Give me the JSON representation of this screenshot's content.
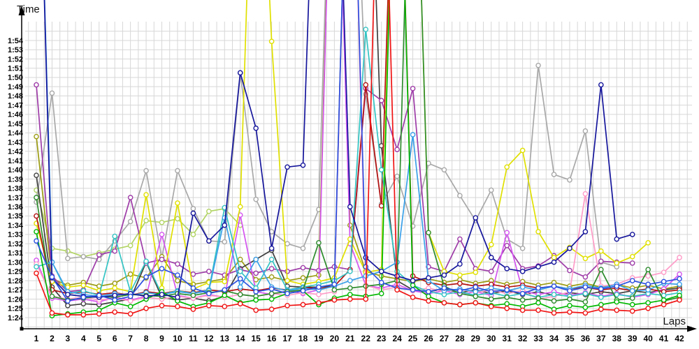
{
  "chart_data": {
    "type": "line",
    "title": "",
    "xlabel": "Laps",
    "ylabel": "Time",
    "x_min_lap": 1,
    "x_max_lap": 42,
    "x_tick_step": 1,
    "y_min_seconds": 84,
    "y_max_seconds": 114,
    "y_tick_step_seconds": 1,
    "y_tick_format": "m:ss",
    "grid": true,
    "legend_position": "none",
    "marker": "open-circle",
    "off_scale_value_seconds": 150,
    "note": "values are lap times in seconds; 84 = 1:24, 114 = 1:54; 150 = pit/out-lap spike off top of chart; null = lap not run",
    "series": [
      {
        "name": "light-green",
        "color": "#b2d465",
        "values": [
          97.8,
          91.5,
          91.2,
          90.6,
          91.0,
          91.4,
          91.8,
          94.5,
          94.3,
          94.7,
          93.0,
          95.5,
          95.8,
          94.0,
          null,
          null,
          null,
          null,
          null,
          null,
          null,
          null,
          null,
          null,
          null,
          null,
          null,
          null,
          null,
          null,
          null,
          null,
          null,
          null,
          null,
          null,
          null,
          null,
          null,
          null,
          null,
          null
        ]
      },
      {
        "name": "gray",
        "color": "#a8a8a8",
        "values": [
          96.5,
          108.3,
          90.4,
          90.6,
          90.3,
          92.3,
          94.4,
          99.9,
          90.4,
          99.9,
          95.8,
          92.3,
          92.2,
          110.5,
          96.8,
          93.3,
          92.0,
          91.5,
          95.7,
          150,
          150,
          108.2,
          96.3,
          99.3,
          93.9,
          100.7,
          100.0,
          97.2,
          94.5,
          97.8,
          92.5,
          91.5,
          111.3,
          99.5,
          98.9,
          104.2,
          90.0,
          89.5,
          null,
          null,
          null,
          null
        ]
      },
      {
        "name": "olive",
        "color": "#9c9c14",
        "values": [
          103.6,
          88.2,
          87.5,
          87.8,
          87.4,
          87.7,
          88.7,
          88.3,
          90.6,
          88.0,
          87.6,
          87.9,
          88.2,
          90.3,
          88.1,
          88.4,
          88.0,
          88.3,
          88.6,
          150,
          94.0,
          89.0,
          88.5,
          88.2,
          87.9,
          88.2,
          87.8,
          88.1,
          87.7,
          88.0,
          87.6,
          87.9,
          87.5,
          87.8,
          87.4,
          87.7,
          87.3,
          87.6,
          87.2,
          87.5,
          87.1,
          87.4
        ]
      },
      {
        "name": "dark-gray",
        "color": "#404040",
        "values": [
          99.4,
          87.3,
          85.3,
          85.5,
          85.4,
          85.7,
          86.0,
          90.0,
          86.2,
          85.9,
          86.1,
          85.8,
          86.3,
          89.3,
          90.3,
          91.3,
          87.4,
          87.3,
          87.3,
          87.4,
          150,
          150,
          102.6,
          88.0,
          87.0,
          86.8,
          87.1,
          86.7,
          87.0,
          86.6,
          86.9,
          86.5,
          86.8,
          86.4,
          86.7,
          86.5,
          86.8,
          86.6,
          86.9,
          86.7,
          87.0,
          87.2
        ]
      },
      {
        "name": "purple",
        "color": "#9e3ca8",
        "values": [
          109.2,
          88.5,
          86.8,
          87.0,
          90.8,
          91.2,
          97.0,
          89.9,
          90.3,
          89.8,
          88.7,
          89.0,
          88.6,
          89.2,
          88.8,
          89.3,
          89.0,
          89.4,
          89.1,
          89.5,
          89.2,
          108.8,
          107.5,
          102.2,
          108.8,
          89.5,
          89.0,
          92.5,
          89.3,
          89.0,
          91.8,
          89.3,
          89.6,
          90.7,
          89.1,
          88.4,
          90.1,
          90.0,
          89.9,
          null,
          null,
          null
        ]
      },
      {
        "name": "magenta",
        "color": "#d455f0",
        "values": [
          90.2,
          86.1,
          85.8,
          86.0,
          85.7,
          86.2,
          85.9,
          86.3,
          93.0,
          86.4,
          86.1,
          86.5,
          86.2,
          95.1,
          86.8,
          86.5,
          86.9,
          86.6,
          87.0,
          150,
          92.0,
          87.5,
          87.2,
          87.6,
          86.9,
          86.6,
          86.9,
          86.5,
          86.8,
          86.4,
          93.2,
          86.9,
          86.5,
          86.8,
          86.4,
          86.7,
          86.3,
          86.6,
          86.2,
          86.5,
          87.1,
          88.7
        ]
      },
      {
        "name": "yellow",
        "color": "#e0e000",
        "values": [
          94.2,
          87.9,
          87.3,
          87.5,
          86.9,
          87.2,
          86.8,
          97.3,
          87.2,
          96.4,
          87.1,
          87.8,
          87.9,
          96.0,
          150,
          113.9,
          88.0,
          87.6,
          87.9,
          88.3,
          92.5,
          88.9,
          89.2,
          150,
          150,
          93.2,
          89.0,
          88.6,
          88.9,
          91.9,
          100.3,
          102.1,
          93.3,
          90.5,
          91.6,
          90.4,
          91.2,
          89.9,
          90.6,
          92.1,
          null,
          null
        ]
      },
      {
        "name": "dark-red",
        "color": "#b41212",
        "values": [
          95.0,
          87.0,
          86.6,
          86.8,
          86.5,
          86.7,
          86.4,
          86.8,
          86.6,
          86.9,
          86.7,
          87.0,
          86.8,
          87.1,
          86.9,
          87.2,
          87.0,
          87.3,
          87.1,
          87.4,
          89.2,
          109.2,
          96.1,
          150,
          88.5,
          87.8,
          87.5,
          87.7,
          87.4,
          87.6,
          87.3,
          87.5,
          87.2,
          87.4,
          87.1,
          87.3,
          87.0,
          87.2,
          86.9,
          87.1,
          86.8,
          87.0
        ]
      },
      {
        "name": "pink",
        "color": "#ff9cc8",
        "values": [
          89.8,
          86.3,
          86.0,
          86.2,
          85.9,
          86.1,
          85.8,
          86.2,
          86.0,
          86.3,
          86.1,
          86.4,
          86.2,
          86.5,
          86.3,
          86.6,
          86.4,
          86.7,
          86.5,
          86.8,
          150,
          87.5,
          87.0,
          87.3,
          86.9,
          87.2,
          86.8,
          87.1,
          86.7,
          87.0,
          86.6,
          86.9,
          86.0,
          86.3,
          86.8,
          97.4,
          87.4,
          87.6,
          88.3,
          88.5,
          88.9,
          90.5
        ]
      },
      {
        "name": "cyan",
        "color": "#35c4c4",
        "values": [
          89.5,
          90.0,
          86.6,
          86.9,
          86.4,
          92.8,
          86.8,
          90.1,
          86.5,
          86.9,
          86.6,
          87.0,
          95.9,
          89.0,
          87.2,
          90.3,
          87.0,
          87.3,
          87.6,
          88.0,
          89.0,
          115.2,
          100.0,
          89.0,
          87.5,
          86.8,
          86.5,
          86.8,
          86.4,
          86.7,
          86.3,
          86.6,
          86.2,
          86.5,
          86.3,
          86.6,
          86.2,
          86.5,
          86.3,
          86.6,
          86.4,
          86.7
        ]
      },
      {
        "name": "light-blue",
        "color": "#3aa0e8",
        "values": [
          150,
          90.0,
          86.8,
          86.5,
          86.3,
          86.6,
          86.4,
          86.7,
          86.5,
          86.8,
          86.6,
          86.9,
          94.8,
          87.3,
          90.3,
          87.3,
          86.9,
          87.2,
          87.0,
          87.4,
          88.0,
          88.5,
          89.0,
          90.0,
          103.8,
          88.0,
          86.9,
          87.1,
          86.8,
          87.2,
          86.9,
          87.3,
          87.0,
          87.4,
          87.1,
          87.5,
          87.2,
          87.6,
          86.9,
          87.0,
          87.7,
          87.6
        ]
      },
      {
        "name": "dark-green",
        "color": "#2e8b2e",
        "values": [
          97.0,
          86.3,
          85.9,
          86.1,
          86.3,
          86.2,
          86.5,
          86.4,
          86.3,
          86.6,
          86.4,
          86.7,
          86.9,
          86.5,
          86.3,
          86.6,
          86.8,
          87.0,
          92.1,
          87.0,
          87.2,
          87.4,
          87.6,
          88.0,
          150,
          93.2,
          87.4,
          86.6,
          86.3,
          86.0,
          86.2,
          85.9,
          86.1,
          85.8,
          86.0,
          85.7,
          89.2,
          85.9,
          86.1,
          89.2,
          85.8,
          86.2
        ]
      },
      {
        "name": "green",
        "color": "#00b800",
        "values": [
          93.3,
          84.2,
          84.4,
          84.6,
          84.8,
          85.6,
          85.2,
          86.0,
          86.8,
          85.8,
          85.2,
          85.6,
          86.4,
          85.6,
          85.9,
          86.0,
          86.6,
          86.9,
          85.4,
          86.1,
          86.5,
          86.3,
          86.6,
          150,
          87.5,
          86.3,
          85.6,
          85.4,
          85.6,
          85.3,
          85.5,
          85.2,
          85.6,
          84.9,
          85.3,
          85.1,
          85.4,
          85.7,
          85.4,
          85.6,
          85.9,
          86.4
        ]
      },
      {
        "name": "navy",
        "color": "#16169c",
        "values": [
          150,
          88.3,
          86.5,
          86.3,
          86.2,
          86.4,
          86.6,
          86.3,
          86.5,
          86.2,
          95.3,
          92.3,
          94.0,
          110.5,
          104.5,
          91.5,
          100.3,
          100.5,
          150,
          150,
          96.0,
          90.5,
          89.0,
          88.5,
          88.0,
          88.3,
          88.6,
          89.8,
          94.8,
          90.5,
          89.3,
          89.0,
          89.5,
          90.0,
          91.5,
          93.3,
          109.2,
          92.5,
          93.0,
          null,
          null,
          null
        ]
      },
      {
        "name": "blue",
        "color": "#2b50e0",
        "values": [
          92.3,
          88.4,
          85.8,
          86.2,
          86.4,
          85.9,
          86.3,
          88.4,
          89.3,
          88.6,
          87.2,
          86.6,
          87.0,
          88.2,
          86.8,
          87.1,
          86.6,
          86.9,
          87.3,
          87.6,
          150,
          89.5,
          87.8,
          87.2,
          87.0,
          86.8,
          87.2,
          86.9,
          87.3,
          86.8,
          87.0,
          86.6,
          87.2,
          87.4,
          86.9,
          87.3,
          87.1,
          87.4,
          88.0,
          87.6,
          87.9,
          88.2
        ]
      },
      {
        "name": "red",
        "color": "#f01414",
        "values": [
          88.8,
          84.5,
          84.3,
          84.3,
          84.4,
          84.6,
          84.4,
          85.0,
          85.3,
          85.2,
          84.9,
          85.3,
          85.2,
          85.5,
          84.8,
          84.9,
          85.3,
          85.4,
          85.6,
          85.9,
          86.0,
          86.0,
          150,
          87.0,
          86.2,
          85.8,
          85.6,
          85.4,
          85.6,
          85.2,
          85.0,
          84.8,
          84.8,
          84.5,
          84.6,
          84.5,
          84.9,
          84.8,
          84.7,
          85.0,
          85.4,
          85.9
        ]
      }
    ]
  }
}
